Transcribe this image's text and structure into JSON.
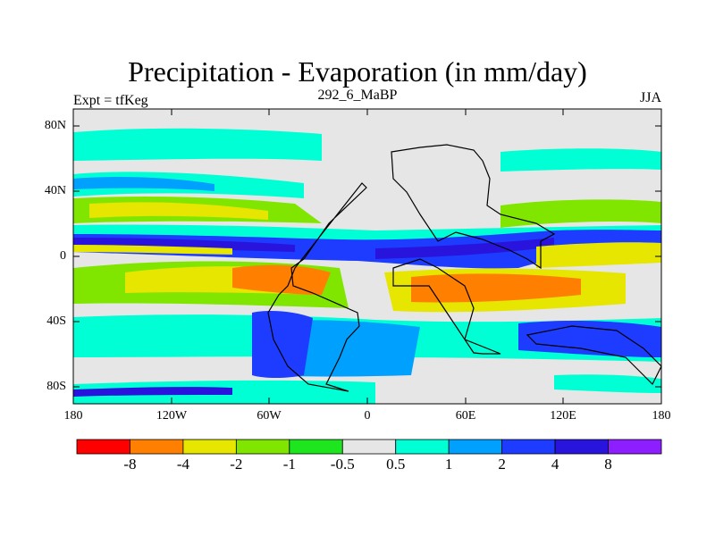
{
  "title": "Precipitation - Evaporation (in mm/day)",
  "subtitle_left": "Expt = tfKeg",
  "subtitle_center": "292_6_MaBP",
  "subtitle_right": "JJA",
  "lat_ticks": [
    "80N",
    "40N",
    "0",
    "40S",
    "80S"
  ],
  "lon_ticks": [
    "180",
    "120W",
    "60W",
    "0",
    "60E",
    "120E",
    "180"
  ],
  "colorbar": {
    "colors": [
      "#ff0000",
      "#ff8000",
      "#e6e600",
      "#80e600",
      "#1ee61e",
      "#e6e6e6",
      "#00ffd4",
      "#00a0ff",
      "#1e3cff",
      "#2814dc",
      "#8c1eff"
    ],
    "labels": [
      "-8",
      "-4",
      "-2",
      "-1",
      "-0.5",
      "0.5",
      "1",
      "2",
      "4",
      "8"
    ]
  }
}
